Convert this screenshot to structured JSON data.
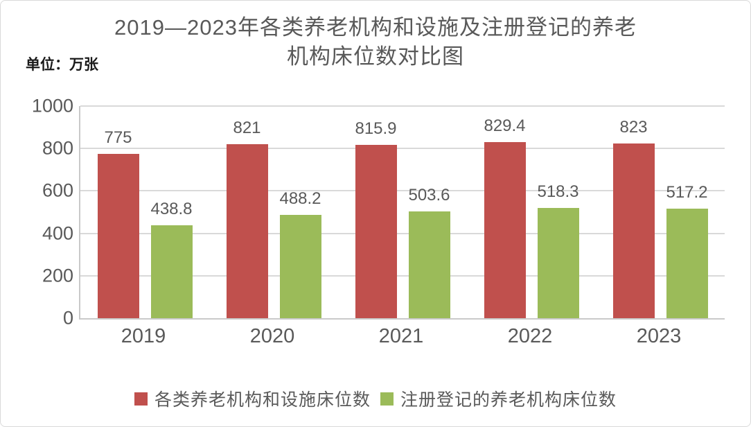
{
  "chart_data": {
    "type": "bar",
    "title": "2019—2023年各类养老机构和设施及注册登记的养老机构床位数对比图",
    "title_lines": [
      "2019—2023年各类养老机构和设施及注册登记的养老",
      "机构床位数对比图"
    ],
    "unit_label": "单位：万张",
    "categories": [
      "2019",
      "2020",
      "2021",
      "2022",
      "2023"
    ],
    "series": [
      {
        "name": "各类养老机构和设施床位数",
        "color": "#c0504d",
        "values": [
          775,
          821,
          815.9,
          829.4,
          823
        ],
        "labels": [
          "775",
          "821",
          "815.9",
          "829.4",
          "823"
        ]
      },
      {
        "name": "注册登记的养老机构床位数",
        "color": "#9bbb59",
        "values": [
          438.8,
          488.2,
          503.6,
          518.3,
          517.2
        ],
        "labels": [
          "438.8",
          "488.2",
          "503.6",
          "518.3",
          "517.2"
        ]
      }
    ],
    "y_axis": {
      "min": 0,
      "max": 1000,
      "ticks": [
        0,
        200,
        400,
        600,
        800,
        1000
      ]
    },
    "ylim": [
      0,
      1000
    ],
    "xlabel": "",
    "ylabel": "",
    "grid": true,
    "legend_position": "bottom"
  },
  "colors": {
    "background": "#ffffff",
    "page_border": "#d9d9d9",
    "gridline": "#d9d9d9",
    "axis_line": "#c9c9c9",
    "title_text": "#595959",
    "label_text": "#595959",
    "unit_text": "#1a1a1a",
    "series_red": "#c0504d",
    "series_green": "#9bbb59"
  }
}
